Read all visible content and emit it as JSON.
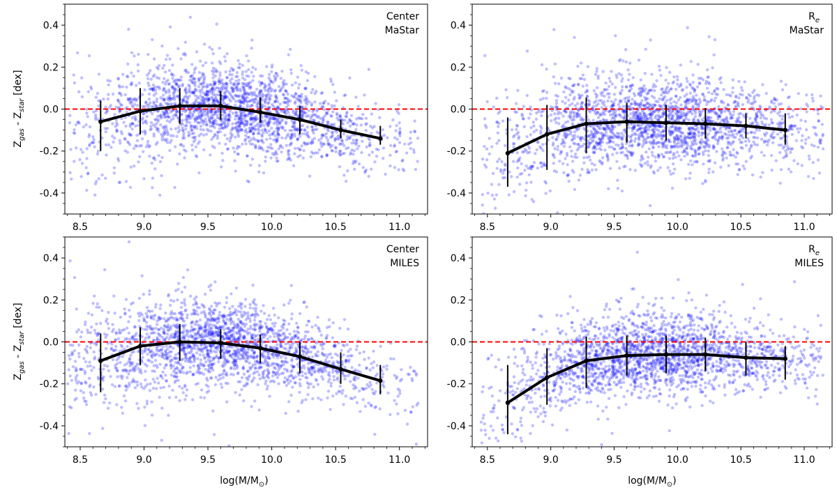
{
  "figure": {
    "ylabel_main": "Z",
    "ylabel_gas_sub": "gas",
    "ylabel_mid": " - Z",
    "ylabel_star_sub": "star",
    "ylabel_unit": " [dex]",
    "xlabel_main": "log(M/M",
    "xlabel_sun": "⊙",
    "xlabel_close": ")"
  },
  "chart_data": [
    {
      "type": "scatter",
      "panel": "top-left",
      "label_lines": [
        "Center",
        "MaStar"
      ],
      "xlim": [
        8.38,
        11.22
      ],
      "ylim": [
        -0.5,
        0.5
      ],
      "xticks": [
        8.5,
        9.0,
        9.5,
        10.0,
        10.5,
        11.0
      ],
      "yticks": [
        -0.4,
        -0.2,
        0.0,
        0.2,
        0.4
      ],
      "reference_line": {
        "y": 0.0,
        "color": "#ff0000",
        "style": "dashed"
      },
      "scatter_color": "#0000ff",
      "scatter_profile": {
        "x_range": [
          8.4,
          11.15
        ],
        "peak_x": 9.7,
        "noise": 0.1
      },
      "series": [
        {
          "x": [
            8.66,
            8.97,
            9.28,
            9.6,
            9.91,
            10.22,
            10.54,
            10.85
          ],
          "y": [
            -0.06,
            -0.01,
            0.015,
            0.015,
            -0.015,
            -0.05,
            -0.1,
            -0.14
          ],
          "err_low": [
            -0.2,
            -0.12,
            -0.07,
            -0.05,
            -0.065,
            -0.12,
            -0.14,
            -0.17
          ],
          "err_high": [
            0.04,
            0.1,
            0.1,
            0.085,
            0.055,
            0.015,
            -0.05,
            -0.08
          ]
        }
      ]
    },
    {
      "type": "scatter",
      "panel": "top-right",
      "label_lines": [
        "R",
        "e",
        "MaStar"
      ],
      "xlim": [
        8.38,
        11.22
      ],
      "ylim": [
        -0.5,
        0.5
      ],
      "xticks": [
        8.5,
        9.0,
        9.5,
        10.0,
        10.5,
        11.0
      ],
      "yticks": [
        -0.4,
        -0.2,
        0.0,
        0.2,
        0.4
      ],
      "reference_line": {
        "y": 0.0,
        "color": "#ff0000",
        "style": "dashed"
      },
      "scatter_color": "#0000ff",
      "scatter_profile": {
        "x_range": [
          8.45,
          11.15
        ],
        "peak_x": 9.8,
        "noise": 0.11
      },
      "series": [
        {
          "x": [
            8.66,
            8.97,
            9.28,
            9.6,
            9.91,
            10.22,
            10.54,
            10.85
          ],
          "y": [
            -0.21,
            -0.12,
            -0.07,
            -0.06,
            -0.065,
            -0.07,
            -0.08,
            -0.1
          ],
          "err_low": [
            -0.37,
            -0.29,
            -0.21,
            -0.16,
            -0.15,
            -0.14,
            -0.14,
            -0.17
          ],
          "err_high": [
            -0.04,
            0.02,
            0.055,
            0.03,
            0.02,
            0.005,
            -0.02,
            -0.02
          ]
        }
      ]
    },
    {
      "type": "scatter",
      "panel": "bottom-left",
      "label_lines": [
        "Center",
        "MILES"
      ],
      "xlim": [
        8.38,
        11.22
      ],
      "ylim": [
        -0.5,
        0.5
      ],
      "xticks": [
        8.5,
        9.0,
        9.5,
        10.0,
        10.5,
        11.0
      ],
      "yticks": [
        -0.4,
        -0.2,
        0.0,
        0.2,
        0.4
      ],
      "reference_line": {
        "y": 0.0,
        "color": "#ff0000",
        "style": "dashed"
      },
      "scatter_color": "#0000ff",
      "scatter_profile": {
        "x_range": [
          8.4,
          11.15
        ],
        "peak_x": 9.6,
        "noise": 0.1
      },
      "series": [
        {
          "x": [
            8.66,
            8.97,
            9.28,
            9.6,
            9.91,
            10.22,
            10.54,
            10.85
          ],
          "y": [
            -0.09,
            -0.02,
            0.0,
            -0.005,
            -0.03,
            -0.07,
            -0.13,
            -0.185
          ],
          "err_low": [
            -0.24,
            -0.11,
            -0.09,
            -0.08,
            -0.1,
            -0.15,
            -0.2,
            -0.25
          ],
          "err_high": [
            0.04,
            0.07,
            0.085,
            0.06,
            0.035,
            0.0,
            -0.05,
            -0.11
          ]
        }
      ]
    },
    {
      "type": "scatter",
      "panel": "bottom-right",
      "label_lines": [
        "R",
        "e",
        "MILES"
      ],
      "xlim": [
        8.38,
        11.22
      ],
      "ylim": [
        -0.5,
        0.5
      ],
      "xticks": [
        8.5,
        9.0,
        9.5,
        10.0,
        10.5,
        11.0
      ],
      "yticks": [
        -0.4,
        -0.2,
        0.0,
        0.2,
        0.4
      ],
      "reference_line": {
        "y": 0.0,
        "color": "#ff0000",
        "style": "dashed"
      },
      "scatter_color": "#0000ff",
      "scatter_profile": {
        "x_range": [
          8.45,
          11.15
        ],
        "peak_x": 9.8,
        "noise": 0.1
      },
      "series": [
        {
          "x": [
            8.66,
            8.97,
            9.28,
            9.6,
            9.91,
            10.22,
            10.54,
            10.85
          ],
          "y": [
            -0.29,
            -0.17,
            -0.09,
            -0.065,
            -0.06,
            -0.06,
            -0.075,
            -0.08
          ],
          "err_low": [
            -0.44,
            -0.3,
            -0.22,
            -0.16,
            -0.15,
            -0.14,
            -0.16,
            -0.18
          ],
          "err_high": [
            -0.11,
            -0.03,
            0.025,
            0.03,
            0.03,
            0.02,
            0.0,
            -0.02
          ]
        }
      ]
    }
  ]
}
